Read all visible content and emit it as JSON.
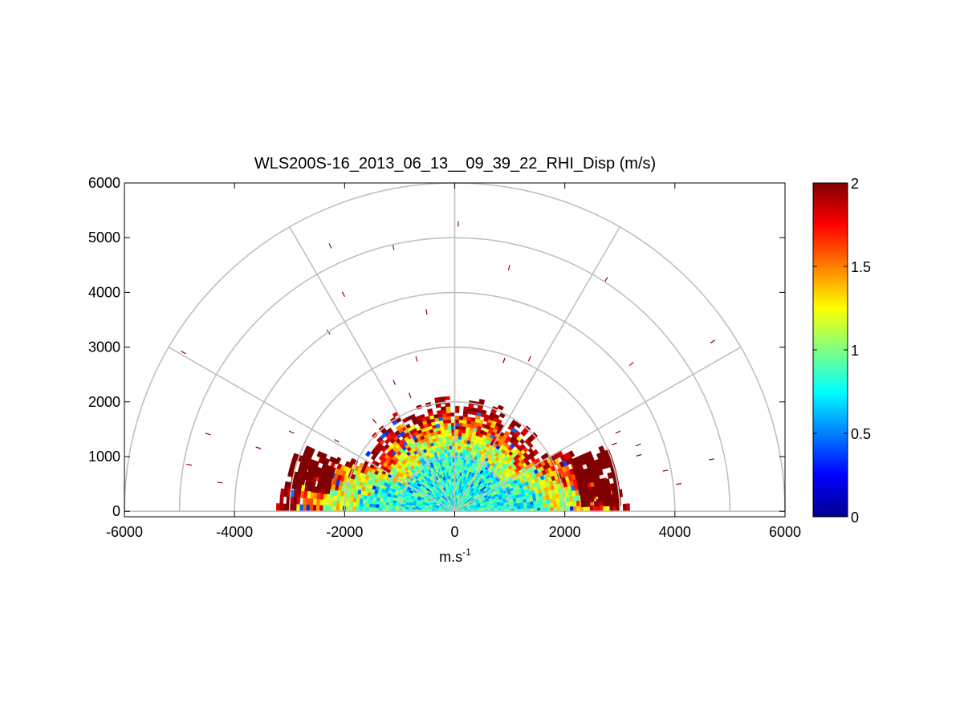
{
  "chart_data": {
    "type": "heatmap",
    "subtype": "polar-rhi",
    "title": "WLS200S-16_2013_06_13__09_39_22_RHI_Disp (m/s)",
    "xlabel_base": "m.s",
    "xlabel_sup": "-1",
    "ylabel": "",
    "xlim": [
      -6000,
      6000
    ],
    "ylim": [
      -100,
      6000
    ],
    "xticks": [
      -6000,
      -4000,
      -2000,
      0,
      2000,
      4000,
      6000
    ],
    "yticks": [
      0,
      1000,
      2000,
      3000,
      4000,
      5000,
      6000
    ],
    "xtick_labels": [
      "-6000",
      "-4000",
      "-2000",
      "0",
      "2000",
      "4000",
      "6000"
    ],
    "ytick_labels": [
      "0",
      "1000",
      "2000",
      "3000",
      "4000",
      "5000",
      "6000"
    ],
    "polar_grid": {
      "rings": [
        1000,
        2000,
        3000,
        4000,
        5000,
        6000
      ],
      "spokes_deg": [
        0,
        30,
        60,
        90,
        120,
        150,
        180
      ]
    },
    "colorbar": {
      "min": 0,
      "max": 2,
      "ticks": [
        0,
        0.5,
        1,
        1.5,
        2
      ],
      "tick_labels": [
        "0",
        "0.5",
        "1",
        "1.5",
        "2"
      ],
      "colormap": "jet"
    },
    "dense_region": {
      "note_values": "near-range dispersion mostly 0.7-1.1 m/s, rising to >=2 m/s at outer edge",
      "angle_deg": [
        0,
        180
      ],
      "range_m": [
        0,
        2000
      ]
    },
    "isolated_cells": [
      {
        "az": 89.3,
        "r": 5250,
        "v": 2.0
      },
      {
        "az": 115.0,
        "r": 5350,
        "v": 2.0
      },
      {
        "az": 103.0,
        "r": 4950,
        "v": 2.0
      },
      {
        "az": 117.0,
        "r": 4450,
        "v": 2.0
      },
      {
        "az": 125.0,
        "r": 4000,
        "v": 2.0
      },
      {
        "az": 98.0,
        "r": 3680,
        "v": 2.0
      },
      {
        "az": 77.5,
        "r": 4560,
        "v": 2.0
      },
      {
        "az": 57.0,
        "r": 5050,
        "v": 2.0
      },
      {
        "az": 33.5,
        "r": 5620,
        "v": 2.0
      },
      {
        "az": 40.0,
        "r": 4190,
        "v": 1.85
      },
      {
        "az": 149.5,
        "r": 5720,
        "v": 2.0
      },
      {
        "az": 131.5,
        "r": 2200,
        "v": 2.0
      },
      {
        "az": 72.0,
        "r": 2900,
        "v": 2.0
      },
      {
        "az": 64.0,
        "r": 3100,
        "v": 2.0
      },
      {
        "az": 115.0,
        "r": 2600,
        "v": 2.0
      },
      {
        "az": 104.0,
        "r": 2870,
        "v": 2.0
      },
      {
        "az": 149.0,
        "r": 2500,
        "v": 2.0
      },
      {
        "az": 131.0,
        "r": 1870,
        "v": 2.0
      },
      {
        "az": 111.0,
        "r": 2270,
        "v": 2.0
      },
      {
        "az": 170.0,
        "r": 4900,
        "v": 2.0
      },
      {
        "az": 154.0,
        "r": 3300,
        "v": 2.0
      },
      {
        "az": 11.5,
        "r": 4760,
        "v": 2.0
      },
      {
        "az": 20.0,
        "r": 3550,
        "v": 2.0
      },
      {
        "az": 17.0,
        "r": 3500,
        "v": 2.0
      },
      {
        "az": 23.0,
        "r": 3150,
        "v": 2.0
      },
      {
        "az": 26.0,
        "r": 3300,
        "v": 2.0
      },
      {
        "az": 11.0,
        "r": 3900,
        "v": 2.0
      },
      {
        "az": 7.0,
        "r": 4100,
        "v": 2.0
      },
      {
        "az": 162.0,
        "r": 3750,
        "v": 2.0
      },
      {
        "az": 162.5,
        "r": 4700,
        "v": 2.0
      },
      {
        "az": 173.0,
        "r": 4300,
        "v": 2.0
      }
    ]
  }
}
